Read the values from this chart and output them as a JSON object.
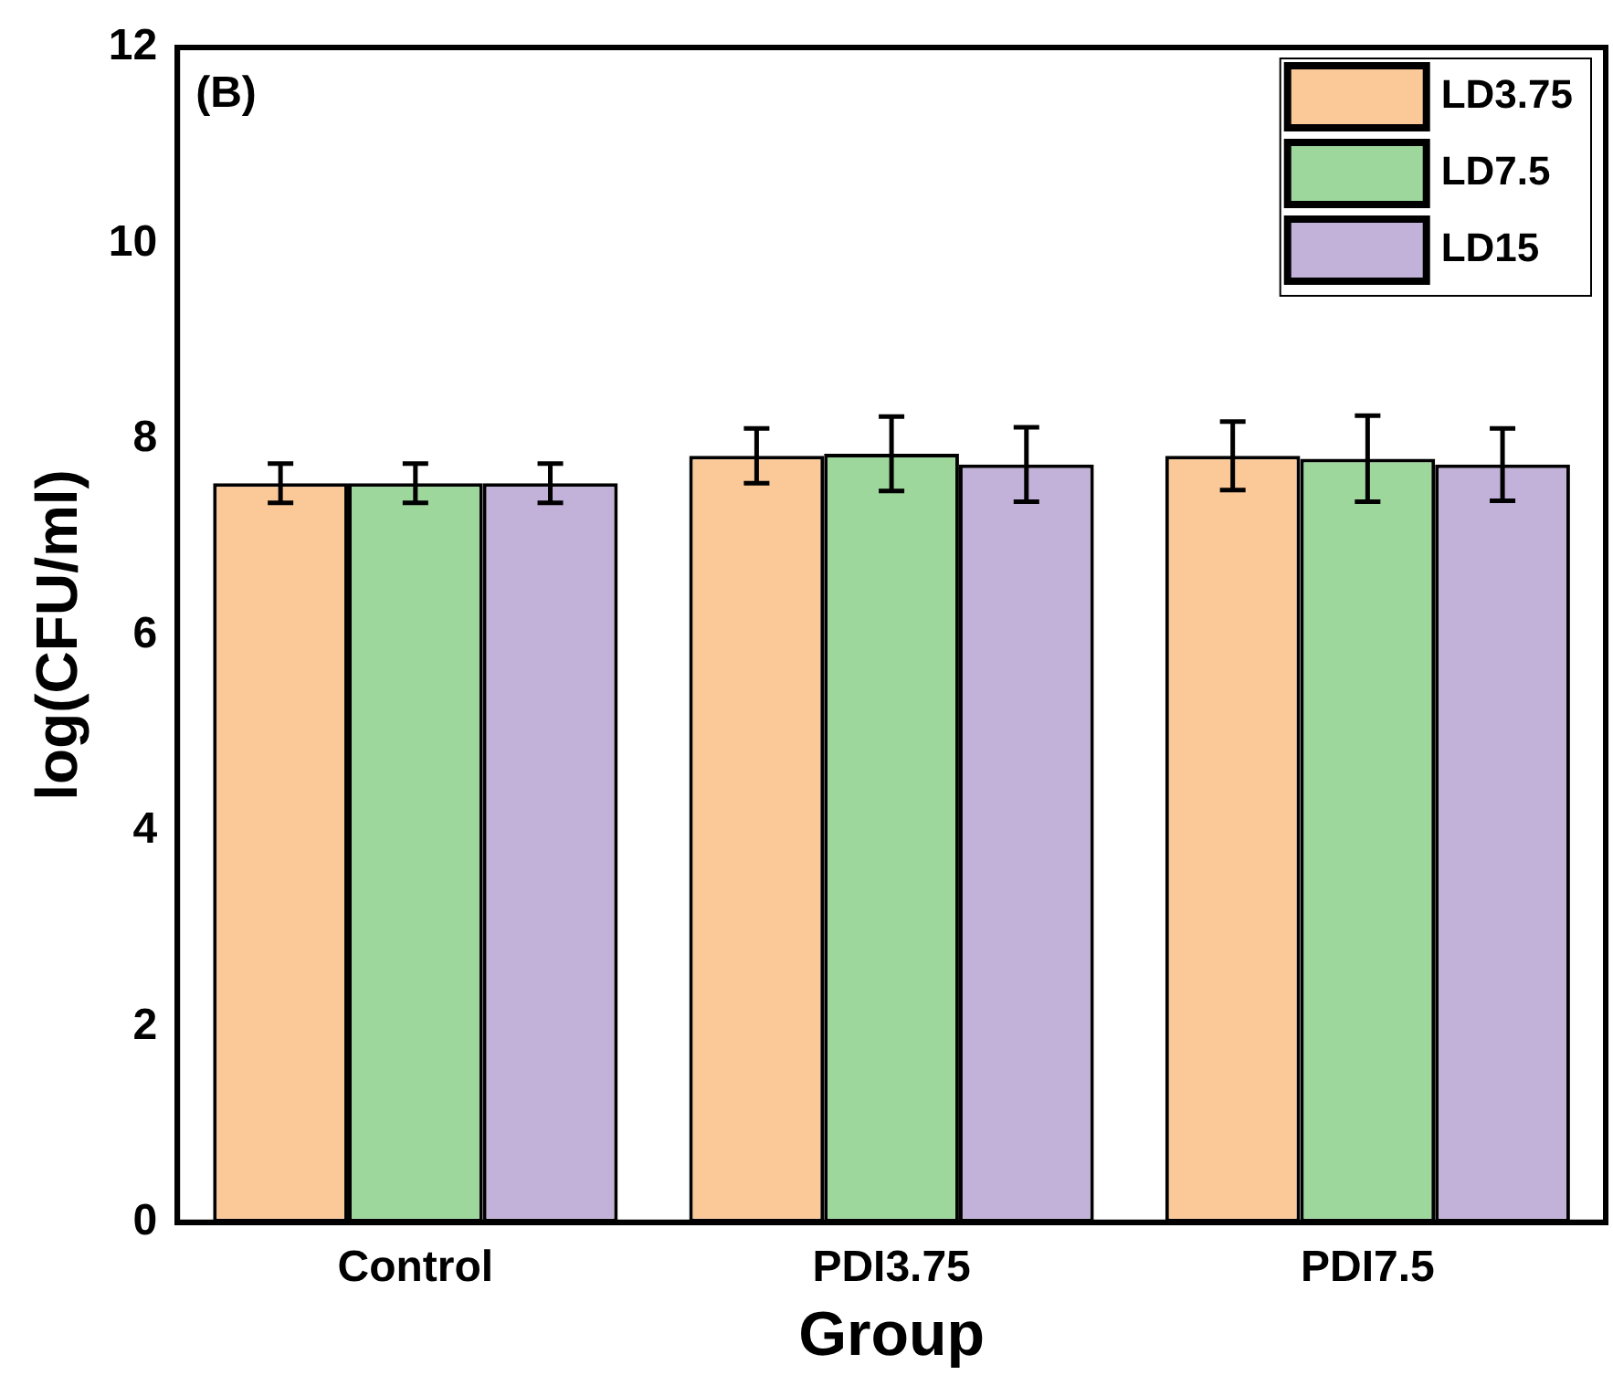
{
  "chart_data": {
    "type": "bar",
    "xlabel": "Group",
    "ylabel": "log(CFU/ml)",
    "annotations": [
      "(B)"
    ],
    "categories": [
      "Control",
      "PDI3.75",
      "PDI7.5"
    ],
    "series": [
      {
        "name": "LD3.75",
        "color": "#fbc897",
        "values": [
          7.55,
          7.83,
          7.83
        ],
        "errors": [
          0.2,
          0.28,
          0.35
        ]
      },
      {
        "name": "LD7.5",
        "color": "#9dd79c",
        "values": [
          7.55,
          7.85,
          7.8
        ],
        "errors": [
          0.2,
          0.38,
          0.44
        ]
      },
      {
        "name": "LD15",
        "color": "#c2b1d8",
        "values": [
          7.55,
          7.74,
          7.74
        ],
        "errors": [
          0.2,
          0.38,
          0.37
        ]
      }
    ],
    "ylim": [
      0,
      12
    ],
    "yticks": [
      0,
      2,
      4,
      6,
      8,
      10,
      12
    ],
    "grid": false,
    "legend": "top right"
  }
}
